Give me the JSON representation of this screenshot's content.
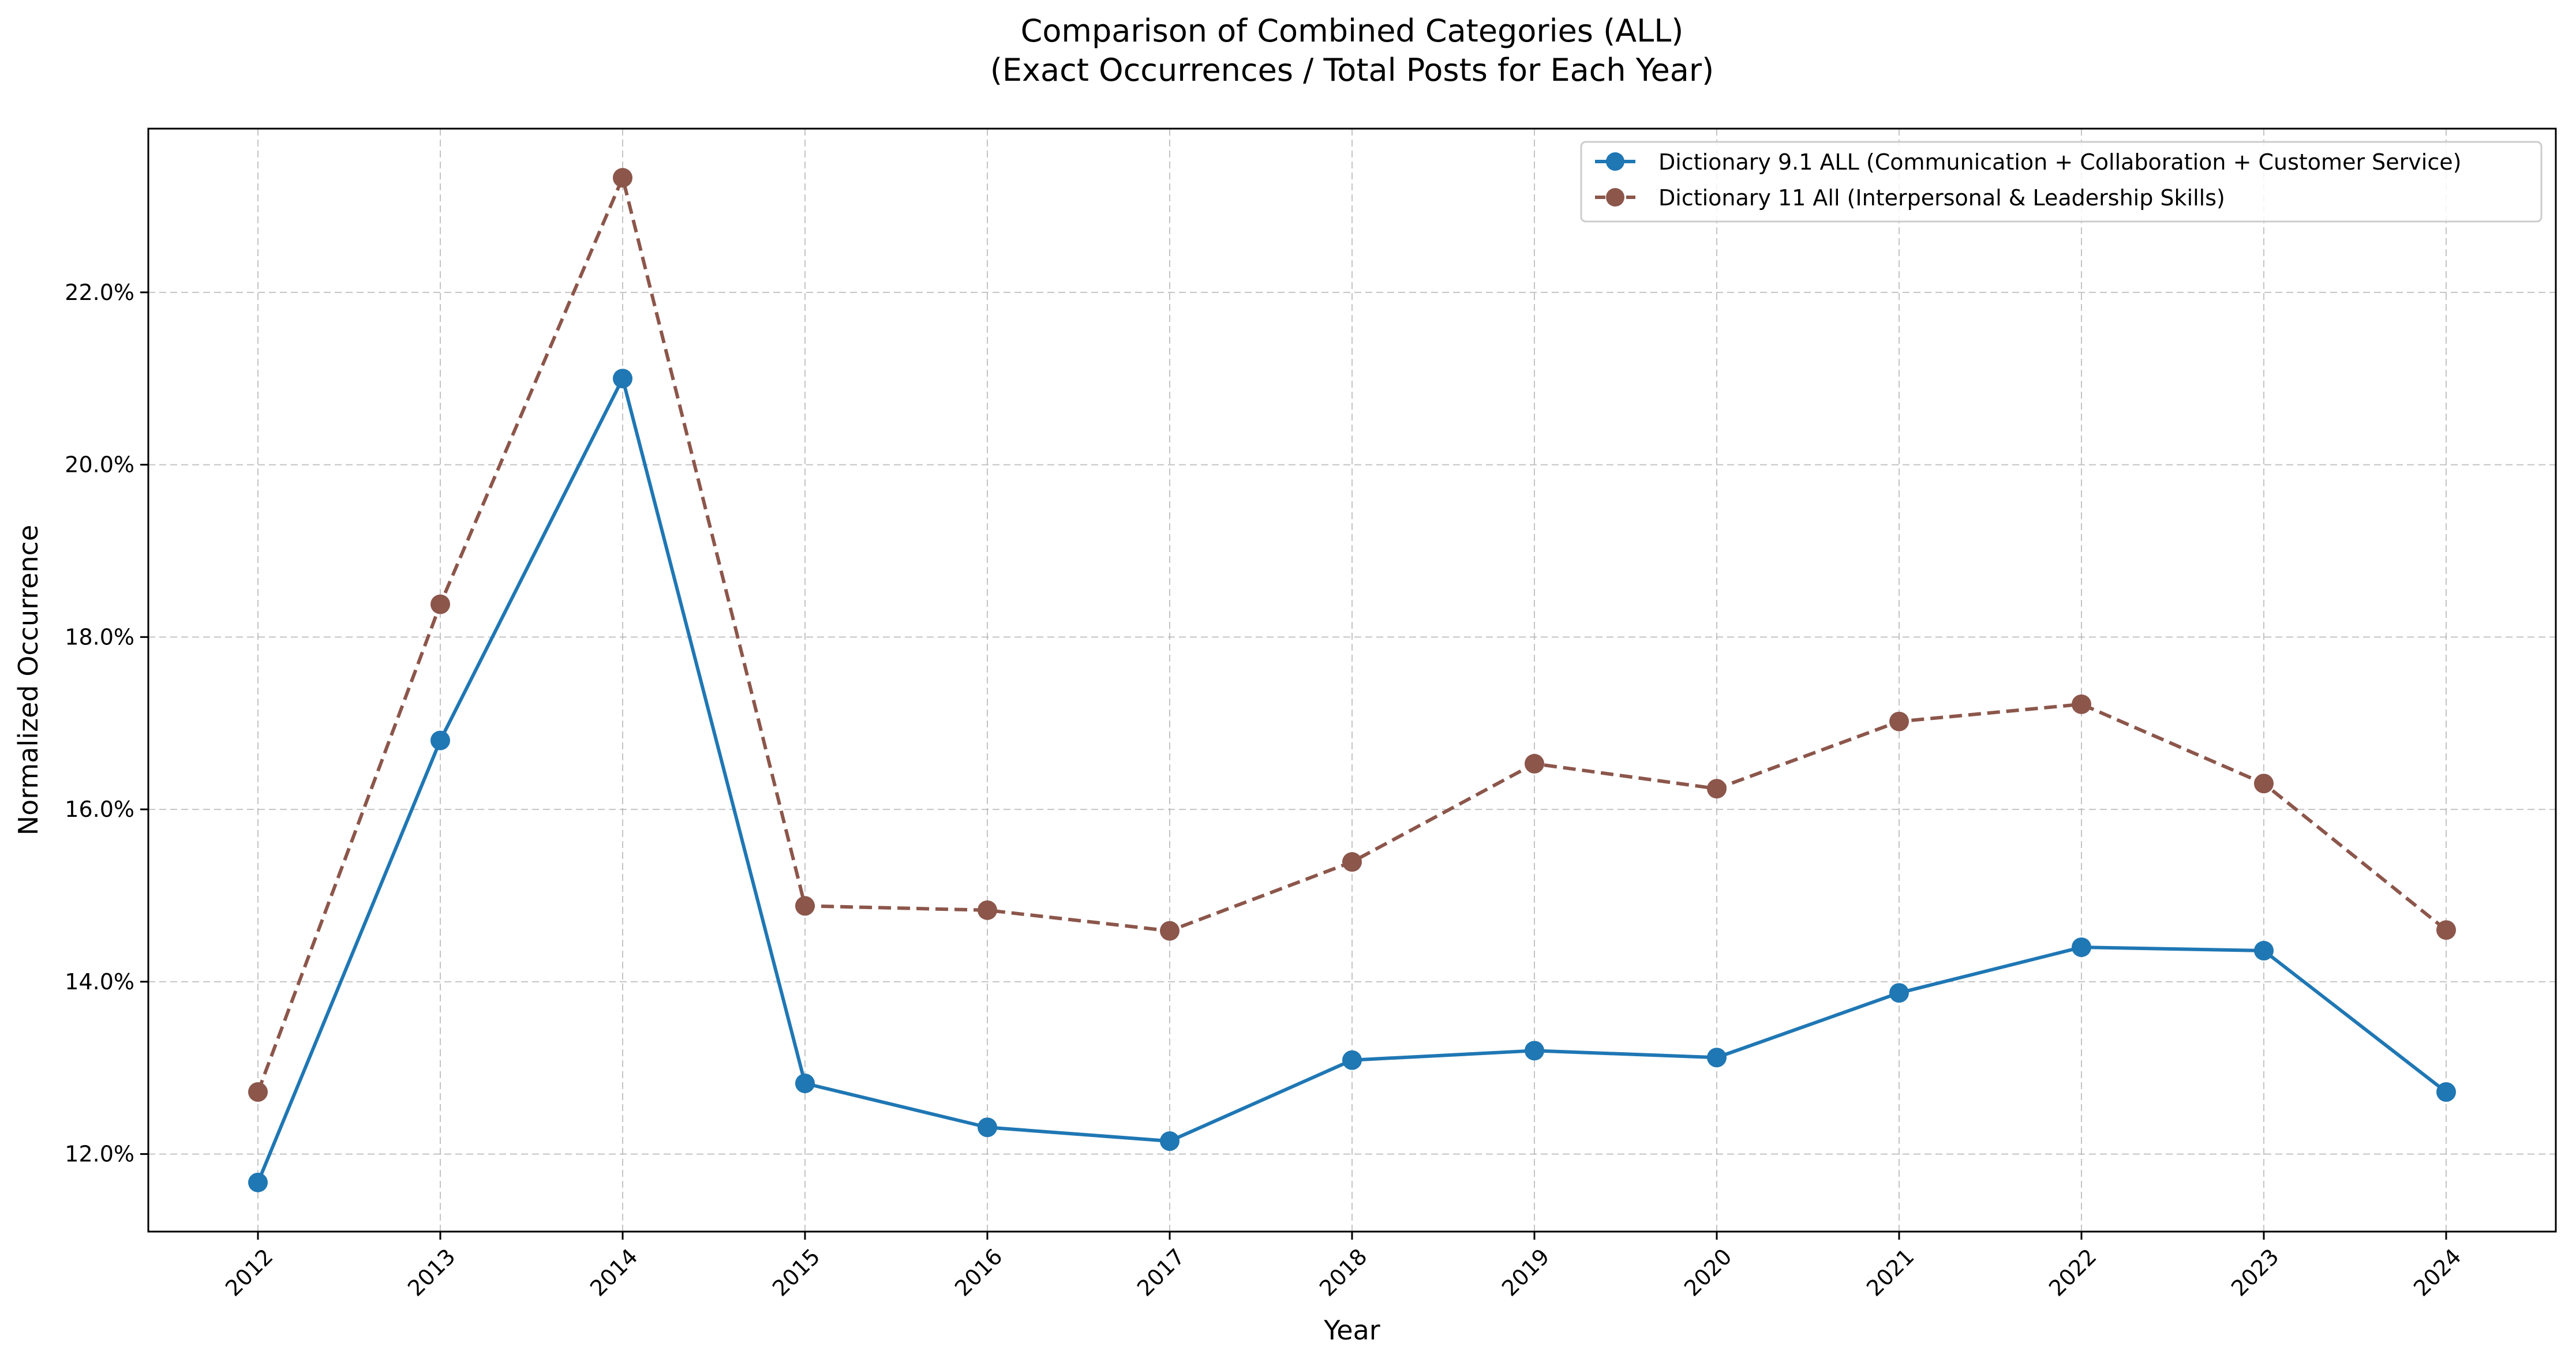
{
  "chart_data": {
    "type": "line",
    "title": "Comparison of Combined Categories (ALL)",
    "subtitle": "(Exact Occurrences / Total Posts for Each Year)",
    "xlabel": "Year",
    "ylabel": "Normalized Occurrence",
    "categories": [
      "2012",
      "2013",
      "2014",
      "2015",
      "2016",
      "2017",
      "2018",
      "2019",
      "2020",
      "2021",
      "2022",
      "2023",
      "2024"
    ],
    "y_ticks": [
      "12.0%",
      "14.0%",
      "16.0%",
      "18.0%",
      "20.0%",
      "22.0%"
    ],
    "y_tick_values": [
      12.0,
      14.0,
      16.0,
      18.0,
      20.0,
      22.0
    ],
    "ylim": [
      11.1,
      23.9
    ],
    "grid": true,
    "legend_position": "top-right",
    "series": [
      {
        "name": "Dictionary 9.1 ALL (Communication + Collaboration + Customer Service)",
        "color": "#1f77b4",
        "line_style": "solid",
        "marker": "circle",
        "values": [
          11.67,
          16.8,
          21.0,
          12.82,
          12.31,
          12.15,
          13.09,
          13.2,
          13.12,
          13.87,
          14.4,
          14.36,
          12.72
        ]
      },
      {
        "name": "Dictionary 11 All (Interpersonal & Leadership Skills)",
        "color": "#8c564b",
        "line_style": "dashed",
        "marker": "circle",
        "values": [
          12.72,
          18.38,
          23.33,
          14.88,
          14.83,
          14.59,
          15.39,
          16.53,
          16.24,
          17.02,
          17.22,
          16.3,
          14.6
        ]
      }
    ]
  }
}
